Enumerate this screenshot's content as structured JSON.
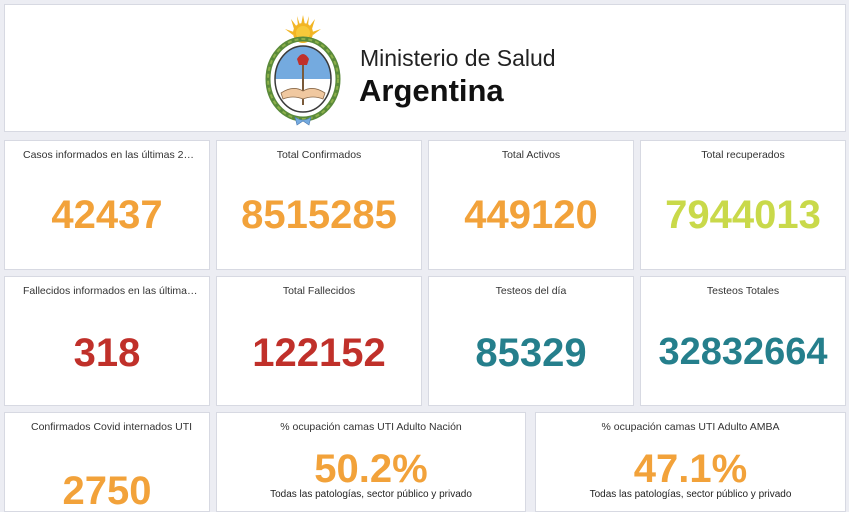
{
  "header": {
    "ministry_line": "Ministerio de Salud",
    "country_line": "Argentina"
  },
  "colors": {
    "orange": "#f2a23a",
    "lime": "#c9d94a",
    "red": "#c0302a",
    "teal": "#257f8c"
  },
  "cards": {
    "casos_ultimas": {
      "title": "Casos informados en las últimas 2…",
      "value": "42437"
    },
    "total_confirmados": {
      "title": "Total Confirmados",
      "value": "8515285"
    },
    "total_activos": {
      "title": "Total Activos",
      "value": "449120"
    },
    "total_recuperados": {
      "title": "Total recuperados",
      "value": "7944013"
    },
    "fallecidos_ultimas": {
      "title": "Fallecidos informados en las última…",
      "value": "318"
    },
    "total_fallecidos": {
      "title": "Total Fallecidos",
      "value": "122152"
    },
    "testeos_dia": {
      "title": "Testeos del día",
      "value": "85329"
    },
    "testeos_totales": {
      "title": "Testeos Totales",
      "value": "32832664"
    },
    "internados_uti": {
      "title": "Confirmados Covid internados UTI",
      "value": "2750"
    },
    "ocupacion_nacion": {
      "title": "% ocupación camas UTI Adulto Nación",
      "value": "50.2%",
      "subtitle": "Todas las patologías, sector público y privado"
    },
    "ocupacion_amba": {
      "title": "% ocupación camas UTI Adulto AMBA",
      "value": "47.1%",
      "subtitle": "Todas las patologías, sector público y privado"
    }
  }
}
